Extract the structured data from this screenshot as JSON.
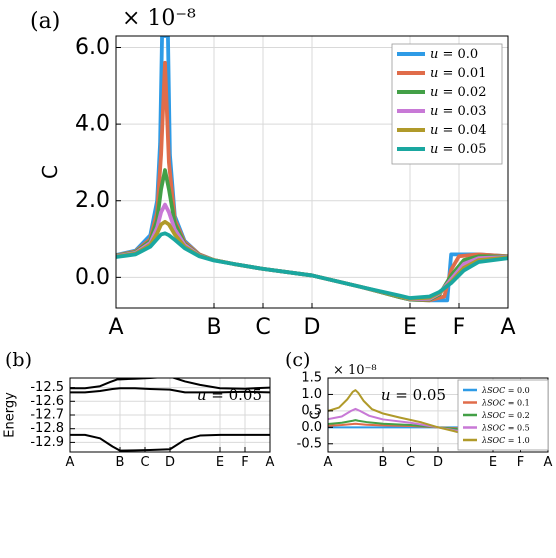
{
  "chart_data": [
    {
      "panel_label": "(a)",
      "type": "line",
      "ylabel": "C",
      "scale_note": "× 10⁻⁸",
      "x_ticks": [
        "A",
        "B",
        "C",
        "D",
        "E",
        "F",
        "A"
      ],
      "x_tick_positions": [
        0,
        1,
        1.5,
        2,
        3,
        3.5,
        4
      ],
      "xlim": [
        0,
        4
      ],
      "ylim": [
        -0.8,
        6.3
      ],
      "y_ticks": [
        0.0,
        2.0,
        4.0,
        6.0
      ],
      "y_tick_labels": [
        "0.0",
        "2.0",
        "4.0",
        "6.0"
      ],
      "grid": true,
      "legend_position": "top-right",
      "series": [
        {
          "name": "u = 0.0",
          "color": "#2e9be6",
          "x": [
            0,
            0.2,
            0.35,
            0.42,
            0.45,
            0.47,
            0.5,
            0.53,
            0.55,
            0.6,
            0.7,
            0.85,
            1.0,
            1.2,
            1.5,
            2.0,
            2.5,
            2.9,
            3.0,
            3.2,
            3.38,
            3.42,
            3.5,
            3.7,
            4.0
          ],
          "y": [
            0.58,
            0.7,
            1.1,
            2.0,
            3.5,
            6.3,
            6.3,
            6.3,
            3.2,
            1.6,
            0.95,
            0.6,
            0.45,
            0.35,
            0.22,
            0.05,
            -0.25,
            -0.52,
            -0.58,
            -0.6,
            -0.6,
            0.6,
            0.6,
            0.6,
            0.55
          ]
        },
        {
          "name": "u = 0.01",
          "color": "#e06c4a",
          "x": [
            0,
            0.2,
            0.35,
            0.42,
            0.46,
            0.5,
            0.54,
            0.6,
            0.7,
            0.85,
            1.0,
            1.2,
            1.5,
            2.0,
            2.5,
            2.9,
            3.0,
            3.2,
            3.35,
            3.42,
            3.5,
            3.7,
            4.0
          ],
          "y": [
            0.57,
            0.68,
            1.0,
            1.7,
            3.2,
            5.6,
            3.0,
            1.5,
            0.92,
            0.6,
            0.45,
            0.35,
            0.22,
            0.05,
            -0.25,
            -0.52,
            -0.58,
            -0.6,
            -0.5,
            0.2,
            0.55,
            0.6,
            0.55
          ]
        },
        {
          "name": "u = 0.02",
          "color": "#43a047",
          "x": [
            0,
            0.2,
            0.35,
            0.42,
            0.46,
            0.5,
            0.54,
            0.6,
            0.7,
            0.85,
            1.0,
            1.2,
            1.5,
            2.0,
            2.5,
            2.9,
            3.0,
            3.2,
            3.3,
            3.42,
            3.55,
            3.7,
            4.0
          ],
          "y": [
            0.56,
            0.66,
            0.95,
            1.5,
            2.3,
            2.8,
            2.3,
            1.4,
            0.88,
            0.58,
            0.45,
            0.35,
            0.22,
            0.05,
            -0.25,
            -0.52,
            -0.58,
            -0.58,
            -0.45,
            0.05,
            0.45,
            0.55,
            0.54
          ]
        },
        {
          "name": "u = 0.03",
          "color": "#c879d6",
          "x": [
            0,
            0.2,
            0.35,
            0.42,
            0.46,
            0.5,
            0.54,
            0.6,
            0.7,
            0.85,
            1.0,
            1.2,
            1.5,
            2.0,
            2.5,
            2.9,
            3.0,
            3.2,
            3.3,
            3.42,
            3.55,
            3.7,
            4.0
          ],
          "y": [
            0.55,
            0.64,
            0.9,
            1.3,
            1.7,
            1.9,
            1.7,
            1.25,
            0.85,
            0.57,
            0.45,
            0.35,
            0.22,
            0.05,
            -0.25,
            -0.5,
            -0.57,
            -0.56,
            -0.42,
            -0.05,
            0.35,
            0.5,
            0.53
          ]
        },
        {
          "name": "u = 0.04",
          "color": "#b09a2a",
          "x": [
            0,
            0.2,
            0.35,
            0.42,
            0.46,
            0.5,
            0.54,
            0.6,
            0.7,
            0.85,
            1.0,
            1.2,
            1.5,
            2.0,
            2.5,
            2.9,
            3.0,
            3.2,
            3.3,
            3.42,
            3.55,
            3.7,
            4.0
          ],
          "y": [
            0.54,
            0.62,
            0.85,
            1.15,
            1.38,
            1.45,
            1.38,
            1.12,
            0.8,
            0.56,
            0.45,
            0.35,
            0.22,
            0.05,
            -0.25,
            -0.5,
            -0.56,
            -0.53,
            -0.4,
            -0.12,
            0.25,
            0.45,
            0.52
          ]
        },
        {
          "name": "u = 0.05",
          "color": "#1aa7a0",
          "x": [
            0,
            0.2,
            0.35,
            0.42,
            0.46,
            0.5,
            0.54,
            0.6,
            0.7,
            0.85,
            1.0,
            1.2,
            1.5,
            2.0,
            2.5,
            2.9,
            3.0,
            3.2,
            3.3,
            3.42,
            3.55,
            3.7,
            4.0
          ],
          "y": [
            0.53,
            0.6,
            0.8,
            1.0,
            1.12,
            1.15,
            1.1,
            0.98,
            0.76,
            0.55,
            0.44,
            0.35,
            0.22,
            0.05,
            -0.25,
            -0.48,
            -0.54,
            -0.5,
            -0.38,
            -0.15,
            0.18,
            0.4,
            0.5
          ]
        }
      ]
    },
    {
      "panel_label": "(b)",
      "type": "line",
      "ylabel": "Energy",
      "annotation": "u = 0.05",
      "x_ticks": [
        "A",
        "B",
        "C",
        "D",
        "E",
        "F",
        "A"
      ],
      "x_tick_positions": [
        0,
        1,
        1.5,
        2,
        3,
        3.5,
        4
      ],
      "xlim": [
        0,
        4
      ],
      "ylim": [
        -12.97,
        -12.43
      ],
      "y_ticks": [
        -12.5,
        -12.6,
        -12.7,
        -12.8,
        -12.9
      ],
      "y_tick_labels": [
        "-12.5",
        "-12.6",
        "-12.7",
        "-12.8",
        "-12.9"
      ],
      "grid": true,
      "series": [
        {
          "color": "#000000",
          "x": [
            0,
            0.3,
            0.6,
            0.8,
            0.95,
            1.0,
            1.3,
            1.6,
            2.0,
            2.3,
            2.6,
            3.0,
            3.5,
            3.8,
            4.0
          ],
          "y": [
            -12.505,
            -12.505,
            -12.49,
            -12.46,
            -12.44,
            -12.44,
            -12.435,
            -12.43,
            -12.42,
            -12.455,
            -12.48,
            -12.505,
            -12.508,
            -12.503,
            -12.5
          ]
        },
        {
          "color": "#000000",
          "x": [
            0,
            0.3,
            0.6,
            0.85,
            1.0,
            1.3,
            1.6,
            2.0,
            2.3,
            2.6,
            3.0,
            3.5,
            4.0
          ],
          "y": [
            -12.535,
            -12.535,
            -12.525,
            -12.51,
            -12.505,
            -12.505,
            -12.51,
            -12.515,
            -12.535,
            -12.535,
            -12.535,
            -12.53,
            -12.535
          ]
        },
        {
          "color": "#000000",
          "x": [
            0,
            0.3,
            0.6,
            0.85,
            1.0,
            1.3,
            1.6,
            2.0,
            2.3,
            2.6,
            3.0,
            3.5,
            4.0
          ],
          "y": [
            -12.845,
            -12.845,
            -12.87,
            -12.93,
            -12.96,
            -12.958,
            -12.955,
            -12.95,
            -12.88,
            -12.85,
            -12.845,
            -12.845,
            -12.845
          ]
        }
      ]
    },
    {
      "panel_label": "(c)",
      "type": "line",
      "ylabel": "C",
      "scale_note": "× 10⁻⁸",
      "annotation": "u = 0.05",
      "x_ticks": [
        "A",
        "B",
        "C",
        "D",
        "E",
        "F",
        "A"
      ],
      "x_tick_positions": [
        0,
        1,
        1.5,
        2,
        3,
        3.5,
        4
      ],
      "xlim": [
        0,
        4
      ],
      "ylim": [
        -0.75,
        1.5
      ],
      "y_ticks": [
        -0.5,
        0.0,
        0.5,
        1.0,
        1.5
      ],
      "y_tick_labels": [
        "-0.5",
        "0.0",
        "0.5",
        "1.0",
        "1.5"
      ],
      "grid": true,
      "legend_position": "top-right",
      "series": [
        {
          "name": "λSOC = 0.0",
          "color": "#2e9be6",
          "x": [
            0,
            1,
            2,
            3,
            4
          ],
          "y": [
            0.0,
            0.0,
            0.0,
            0.0,
            0.0
          ]
        },
        {
          "name": "λSOC = 0.1",
          "color": "#e06c4a",
          "x": [
            0,
            0.25,
            0.45,
            0.5,
            0.55,
            0.7,
            1.0,
            1.5,
            2.0,
            2.5,
            2.9,
            3.0,
            3.1,
            3.5,
            3.8,
            4.0
          ],
          "y": [
            0.05,
            0.07,
            0.1,
            0.11,
            0.1,
            0.08,
            0.06,
            0.04,
            0.0,
            -0.04,
            -0.05,
            -0.055,
            -0.05,
            0.0,
            0.04,
            0.05
          ]
        },
        {
          "name": "λSOC = 0.2",
          "color": "#43a047",
          "x": [
            0,
            0.25,
            0.45,
            0.5,
            0.55,
            0.7,
            1.0,
            1.5,
            2.0,
            2.5,
            2.9,
            3.0,
            3.1,
            3.5,
            3.8,
            4.0
          ],
          "y": [
            0.1,
            0.14,
            0.2,
            0.22,
            0.2,
            0.16,
            0.11,
            0.07,
            0.0,
            -0.07,
            -0.1,
            -0.11,
            -0.1,
            0.0,
            0.08,
            0.1
          ]
        },
        {
          "name": "λSOC = 0.5",
          "color": "#c879d6",
          "x": [
            0,
            0.25,
            0.42,
            0.5,
            0.58,
            0.75,
            1.0,
            1.5,
            2.0,
            2.5,
            2.85,
            3.0,
            3.15,
            3.5,
            3.8,
            4.0
          ],
          "y": [
            0.25,
            0.33,
            0.5,
            0.56,
            0.5,
            0.35,
            0.24,
            0.14,
            0.0,
            -0.15,
            -0.24,
            -0.27,
            -0.22,
            0.0,
            0.2,
            0.25
          ]
        },
        {
          "name": "λSOC = 1.0",
          "color": "#b09a2a",
          "x": [
            0,
            0.2,
            0.35,
            0.45,
            0.5,
            0.55,
            0.65,
            0.8,
            1.0,
            1.3,
            1.7,
            2.0,
            2.3,
            2.7,
            2.9,
            3.0,
            3.1,
            3.3,
            3.5,
            3.75,
            4.0
          ],
          "y": [
            0.5,
            0.6,
            0.85,
            1.08,
            1.13,
            1.05,
            0.8,
            0.55,
            0.42,
            0.3,
            0.15,
            0.0,
            -0.12,
            -0.3,
            -0.45,
            -0.52,
            -0.45,
            -0.22,
            0.02,
            0.3,
            0.5
          ]
        }
      ]
    }
  ]
}
